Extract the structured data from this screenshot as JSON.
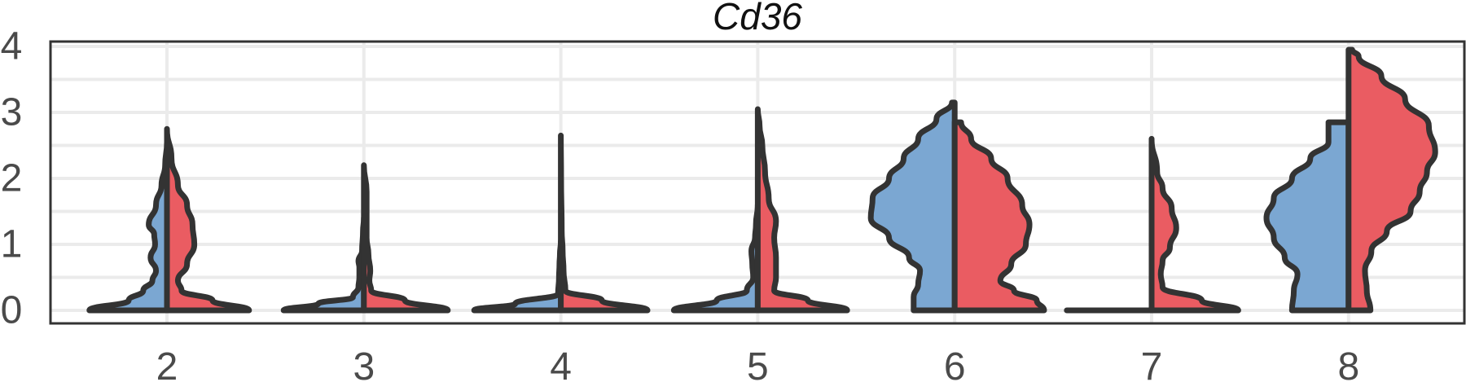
{
  "chart_data": {
    "type": "split-violin",
    "title": "Cd36",
    "xlabel": "",
    "ylabel": "",
    "categories": [
      "2",
      "3",
      "4",
      "5",
      "6",
      "7",
      "8"
    ],
    "ylim": [
      0,
      4
    ],
    "yticks": [
      0,
      1,
      2,
      3,
      4
    ],
    "grid": true,
    "legend": "none",
    "colors": {
      "left": "#7BA7D2",
      "right": "#EA5C62"
    },
    "violins": [
      {
        "category": "2",
        "left": {
          "max": 2.55,
          "profile": [
            [
              0,
              0.85
            ],
            [
              0.15,
              0.42
            ],
            [
              0.3,
              0.26
            ],
            [
              0.45,
              0.16
            ],
            [
              0.6,
              0.12
            ],
            [
              0.8,
              0.18
            ],
            [
              1.0,
              0.13
            ],
            [
              1.15,
              0.14
            ],
            [
              1.3,
              0.2
            ],
            [
              1.6,
              0.12
            ],
            [
              1.9,
              0.06
            ],
            [
              2.2,
              0.02
            ],
            [
              2.55,
              0
            ]
          ]
        },
        "right": {
          "max": 2.75,
          "profile": [
            [
              0,
              0.9
            ],
            [
              0.15,
              0.5
            ],
            [
              0.3,
              0.16
            ],
            [
              0.45,
              0.12
            ],
            [
              0.7,
              0.22
            ],
            [
              1.0,
              0.3
            ],
            [
              1.3,
              0.28
            ],
            [
              1.6,
              0.22
            ],
            [
              1.9,
              0.12
            ],
            [
              2.3,
              0.05
            ],
            [
              2.75,
              0
            ]
          ]
        }
      },
      {
        "category": "3",
        "left": {
          "max": 1.4,
          "profile": [
            [
              0,
              0.88
            ],
            [
              0.1,
              0.5
            ],
            [
              0.2,
              0.12
            ],
            [
              0.35,
              0.06
            ],
            [
              0.5,
              0.05
            ],
            [
              0.65,
              0.05
            ],
            [
              0.75,
              0.06
            ],
            [
              0.9,
              0.02
            ],
            [
              1.2,
              0.01
            ],
            [
              1.4,
              0
            ]
          ]
        },
        "right": {
          "max": 2.2,
          "profile": [
            [
              0,
              0.92
            ],
            [
              0.15,
              0.45
            ],
            [
              0.3,
              0.08
            ],
            [
              0.45,
              0.06
            ],
            [
              0.6,
              0.07
            ],
            [
              0.85,
              0.05
            ],
            [
              1.1,
              0.03
            ],
            [
              1.5,
              0.03
            ],
            [
              1.8,
              0.03
            ],
            [
              2.2,
              0
            ]
          ]
        }
      },
      {
        "category": "4",
        "left": {
          "max": 1.05,
          "profile": [
            [
              0,
              0.95
            ],
            [
              0.1,
              0.5
            ],
            [
              0.25,
              0.03
            ],
            [
              0.5,
              0.02
            ],
            [
              0.7,
              0.015
            ],
            [
              0.85,
              0.01
            ],
            [
              1.05,
              0
            ]
          ]
        },
        "right": {
          "max": 2.65,
          "profile": [
            [
              0,
              0.95
            ],
            [
              0.15,
              0.45
            ],
            [
              0.3,
              0.05
            ],
            [
              0.6,
              0.03
            ],
            [
              0.9,
              0.02
            ],
            [
              1.2,
              0.01
            ],
            [
              2.0,
              0.003
            ],
            [
              2.65,
              0
            ]
          ]
        }
      },
      {
        "category": "5",
        "left": {
          "max": 1.6,
          "profile": [
            [
              0,
              0.92
            ],
            [
              0.15,
              0.45
            ],
            [
              0.3,
              0.12
            ],
            [
              0.5,
              0.05
            ],
            [
              0.7,
              0.06
            ],
            [
              0.9,
              0.07
            ],
            [
              1.1,
              0.03
            ],
            [
              1.3,
              0.02
            ],
            [
              1.6,
              0
            ]
          ]
        },
        "right": {
          "max": 3.05,
          "profile": [
            [
              0,
              0.98
            ],
            [
              0.15,
              0.55
            ],
            [
              0.3,
              0.18
            ],
            [
              0.5,
              0.2
            ],
            [
              0.8,
              0.2
            ],
            [
              1.1,
              0.18
            ],
            [
              1.35,
              0.2
            ],
            [
              1.7,
              0.12
            ],
            [
              2.1,
              0.08
            ],
            [
              2.5,
              0.05
            ],
            [
              2.8,
              0.02
            ],
            [
              3.05,
              0
            ]
          ]
        }
      },
      {
        "category": "6",
        "left": {
          "max": 3.15,
          "profile": [
            [
              0,
              0.45
            ],
            [
              0.2,
              0.45
            ],
            [
              0.4,
              0.4
            ],
            [
              0.6,
              0.38
            ],
            [
              0.8,
              0.5
            ],
            [
              1.1,
              0.72
            ],
            [
              1.4,
              0.92
            ],
            [
              1.7,
              0.9
            ],
            [
              2.0,
              0.72
            ],
            [
              2.3,
              0.56
            ],
            [
              2.6,
              0.4
            ],
            [
              2.9,
              0.2
            ],
            [
              3.15,
              0.03
            ]
          ]
        },
        "right": {
          "max": 2.85,
          "profile": [
            [
              0,
              0.98
            ],
            [
              0.15,
              0.9
            ],
            [
              0.3,
              0.65
            ],
            [
              0.45,
              0.5
            ],
            [
              0.7,
              0.62
            ],
            [
              1.0,
              0.78
            ],
            [
              1.3,
              0.82
            ],
            [
              1.6,
              0.74
            ],
            [
              2.0,
              0.58
            ],
            [
              2.3,
              0.4
            ],
            [
              2.6,
              0.18
            ],
            [
              2.85,
              0.07
            ]
          ]
        }
      },
      {
        "category": "7",
        "left": {
          "max": 0,
          "profile": [
            [
              0,
              0.93
            ]
          ]
        },
        "right": {
          "max": 2.6,
          "profile": [
            [
              0,
              0.95
            ],
            [
              0.15,
              0.55
            ],
            [
              0.35,
              0.12
            ],
            [
              0.55,
              0.1
            ],
            [
              0.75,
              0.12
            ],
            [
              0.95,
              0.2
            ],
            [
              1.25,
              0.27
            ],
            [
              1.55,
              0.22
            ],
            [
              1.85,
              0.12
            ],
            [
              2.1,
              0.06
            ],
            [
              2.6,
              0
            ]
          ]
        }
      },
      {
        "category": "8",
        "left": {
          "max": 2.85,
          "profile": [
            [
              0,
              0.62
            ],
            [
              0.3,
              0.6
            ],
            [
              0.55,
              0.56
            ],
            [
              0.8,
              0.7
            ],
            [
              1.1,
              0.82
            ],
            [
              1.4,
              0.9
            ],
            [
              1.7,
              0.82
            ],
            [
              2.0,
              0.62
            ],
            [
              2.3,
              0.42
            ],
            [
              2.55,
              0.22
            ],
            [
              2.85,
              0.22
            ]
          ]
        },
        "right": {
          "max": 3.95,
          "profile": [
            [
              0,
              0.24
            ],
            [
              0.3,
              0.2
            ],
            [
              0.6,
              0.18
            ],
            [
              0.9,
              0.25
            ],
            [
              1.2,
              0.42
            ],
            [
              1.5,
              0.68
            ],
            [
              1.8,
              0.78
            ],
            [
              2.1,
              0.86
            ],
            [
              2.4,
              0.95
            ],
            [
              2.8,
              0.88
            ],
            [
              3.2,
              0.62
            ],
            [
              3.55,
              0.36
            ],
            [
              3.85,
              0.11
            ],
            [
              3.95,
              0.04
            ]
          ]
        }
      }
    ]
  }
}
